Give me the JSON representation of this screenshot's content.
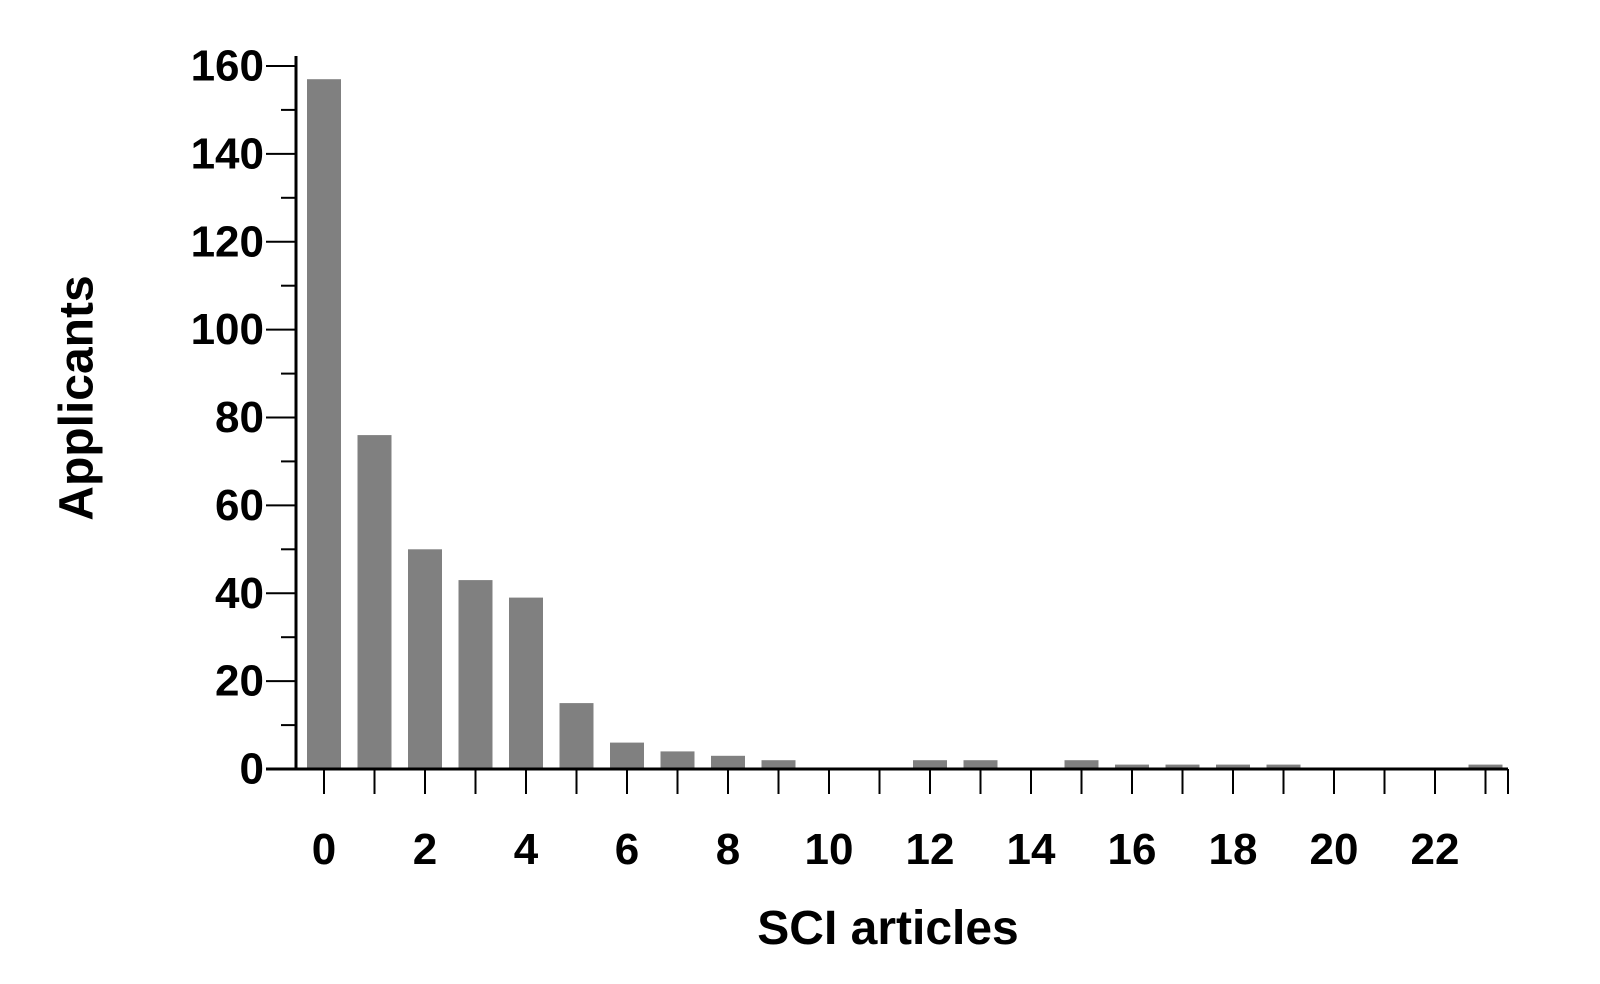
{
  "chart_data": {
    "type": "bar",
    "title": "",
    "xlabel": "SCI articles",
    "ylabel": "Applicants",
    "x": [
      0,
      1,
      2,
      3,
      4,
      5,
      6,
      7,
      8,
      9,
      10,
      11,
      12,
      13,
      14,
      15,
      16,
      17,
      18,
      19,
      20,
      21,
      22,
      23
    ],
    "values": [
      157,
      76,
      50,
      43,
      39,
      15,
      6,
      4,
      3,
      2,
      0,
      0,
      2,
      2,
      0,
      2,
      1,
      1,
      1,
      1,
      0,
      0,
      0,
      1
    ],
    "xlim": [
      -0.5,
      23.5
    ],
    "ylim": [
      0,
      160
    ],
    "x_tick_labels": [
      "0",
      "2",
      "4",
      "6",
      "8",
      "10",
      "12",
      "14",
      "16",
      "18",
      "20",
      "22"
    ],
    "y_tick_labels": [
      "0",
      "20",
      "40",
      "60",
      "80",
      "100",
      "120",
      "140",
      "160"
    ],
    "bar_color": "#808080",
    "axis_color": "#000000",
    "grid": false,
    "legend": "none"
  }
}
